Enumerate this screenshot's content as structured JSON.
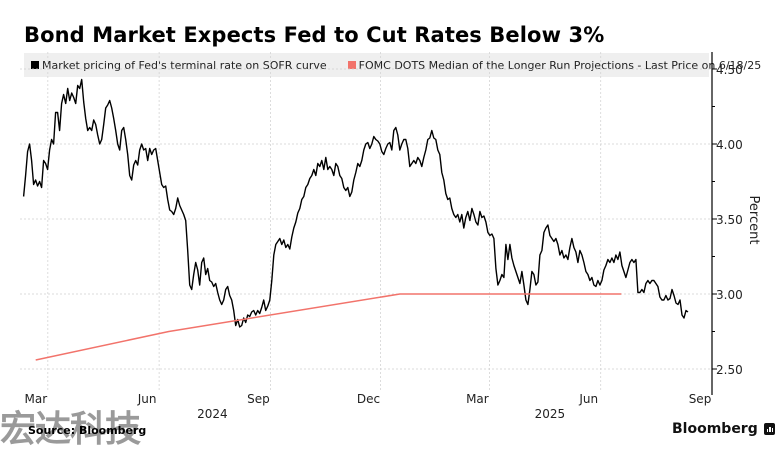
{
  "chart_data": {
    "type": "line",
    "title": "Bond Market Expects Fed to Cut Rates Below 3%",
    "xlabel": "",
    "ylabel": "Percent",
    "ylim": [
      2.4,
      4.6
    ],
    "xlim": [
      "2024-02-07",
      "2025-09-01"
    ],
    "y_ticks": [
      "4.50",
      "4.00",
      "3.50",
      "3.00",
      "2.50"
    ],
    "y_tick_values": [
      4.5,
      4.0,
      3.5,
      3.0,
      2.5
    ],
    "x_ticks": [
      {
        "label": "Mar",
        "date": "2024-03-01"
      },
      {
        "label": "Jun",
        "date": "2024-06-01"
      },
      {
        "label": "Sep",
        "date": "2024-09-01"
      },
      {
        "label": "Dec",
        "date": "2024-12-01"
      },
      {
        "label": "Mar",
        "date": "2025-03-01"
      },
      {
        "label": "Jun",
        "date": "2025-06-01"
      },
      {
        "label": "Sep",
        "date": "2025-09-01"
      }
    ],
    "x_years": [
      {
        "label": "2024",
        "date": "2024-07-15"
      },
      {
        "label": "2025",
        "date": "2025-04-20"
      }
    ],
    "grid": true,
    "legend_position": "top",
    "series": [
      {
        "name": "Market pricing of Fed's terminal rate on SOFR curve",
        "color": "#000000",
        "start_date": "2024-02-10",
        "step_days": 1.654,
        "values": [
          3.65,
          3.79,
          3.95,
          4.0,
          3.89,
          3.73,
          3.76,
          3.72,
          3.75,
          3.71,
          3.89,
          3.87,
          3.83,
          3.96,
          4.03,
          4.0,
          4.21,
          4.21,
          4.09,
          4.27,
          4.33,
          4.27,
          4.37,
          4.29,
          4.34,
          4.31,
          4.27,
          4.39,
          4.37,
          4.43,
          4.28,
          4.17,
          4.09,
          4.11,
          4.09,
          4.16,
          4.13,
          4.06,
          4.0,
          4.03,
          4.13,
          4.24,
          4.26,
          4.29,
          4.24,
          4.17,
          4.09,
          4.0,
          3.96,
          4.09,
          4.11,
          4.03,
          3.93,
          3.79,
          3.76,
          3.86,
          3.89,
          3.86,
          3.96,
          4.0,
          3.96,
          3.97,
          3.89,
          3.97,
          3.93,
          3.96,
          3.97,
          3.89,
          3.81,
          3.73,
          3.71,
          3.72,
          3.63,
          3.56,
          3.55,
          3.53,
          3.57,
          3.64,
          3.59,
          3.56,
          3.53,
          3.49,
          3.29,
          3.06,
          3.03,
          3.13,
          3.21,
          3.16,
          3.06,
          3.21,
          3.24,
          3.13,
          3.17,
          3.09,
          3.08,
          3.05,
          3.07,
          3.01,
          2.96,
          2.93,
          2.96,
          3.03,
          3.05,
          2.99,
          2.96,
          2.89,
          2.79,
          2.83,
          2.78,
          2.79,
          2.84,
          2.81,
          2.86,
          2.85,
          2.88,
          2.89,
          2.86,
          2.89,
          2.87,
          2.91,
          2.96,
          2.89,
          2.92,
          2.96,
          3.09,
          3.26,
          3.33,
          3.35,
          3.37,
          3.33,
          3.36,
          3.31,
          3.33,
          3.3,
          3.38,
          3.44,
          3.48,
          3.54,
          3.57,
          3.63,
          3.65,
          3.71,
          3.73,
          3.77,
          3.79,
          3.83,
          3.79,
          3.87,
          3.85,
          3.89,
          3.83,
          3.91,
          3.83,
          3.85,
          3.83,
          3.79,
          3.87,
          3.85,
          3.79,
          3.77,
          3.71,
          3.69,
          3.71,
          3.65,
          3.68,
          3.76,
          3.81,
          3.87,
          3.85,
          3.89,
          3.96,
          4.0,
          4.01,
          3.97,
          4.0,
          4.05,
          4.03,
          4.02,
          4.0,
          3.95,
          3.93,
          3.97,
          4.0,
          4.01,
          3.96,
          4.09,
          4.11,
          4.06,
          3.96,
          4.0,
          4.03,
          4.03,
          3.97,
          3.85,
          3.87,
          3.89,
          3.87,
          3.91,
          3.89,
          3.85,
          3.91,
          3.96,
          4.03,
          4.04,
          4.09,
          4.04,
          4.03,
          3.96,
          3.93,
          3.81,
          3.76,
          3.67,
          3.63,
          3.64,
          3.57,
          3.53,
          3.51,
          3.53,
          3.48,
          3.53,
          3.44,
          3.51,
          3.55,
          3.49,
          3.57,
          3.53,
          3.48,
          3.46,
          3.55,
          3.51,
          3.52,
          3.48,
          3.41,
          3.39,
          3.4,
          3.37,
          3.17,
          3.06,
          3.09,
          3.13,
          3.11,
          3.33,
          3.23,
          3.33,
          3.24,
          3.19,
          3.15,
          3.11,
          3.07,
          3.15,
          3.06,
          2.96,
          2.93,
          3.03,
          3.15,
          3.13,
          3.06,
          3.08,
          3.26,
          3.29,
          3.41,
          3.44,
          3.46,
          3.39,
          3.37,
          3.35,
          3.37,
          3.33,
          3.26,
          3.29,
          3.24,
          3.26,
          3.23,
          3.31,
          3.37,
          3.31,
          3.28,
          3.21,
          3.29,
          3.26,
          3.21,
          3.15,
          3.13,
          3.09,
          3.11,
          3.06,
          3.05,
          3.09,
          3.06,
          3.09,
          3.16,
          3.19,
          3.23,
          3.21,
          3.24,
          3.21,
          3.26,
          3.23,
          3.28,
          3.19,
          3.15,
          3.11,
          3.16,
          3.21,
          3.23,
          3.21,
          3.23,
          3.01,
          3.01,
          3.03,
          3.01,
          3.07,
          3.09,
          3.07,
          3.09,
          3.09,
          3.07,
          3.05,
          2.98,
          2.96,
          2.96,
          2.99,
          2.96,
          2.97,
          3.03,
          2.99,
          2.94,
          2.93,
          2.96,
          2.86,
          2.84,
          2.89,
          2.88
        ]
      },
      {
        "name": "FOMC DOTS Median of the Longer Run Projections - Last Price on 6/18/25",
        "color": "#f2736b",
        "points": [
          {
            "date": "2024-02-20",
            "value": 2.56
          },
          {
            "date": "2024-06-09",
            "value": 2.75
          },
          {
            "date": "2024-12-17",
            "value": 3.0
          },
          {
            "date": "2025-06-18",
            "value": 3.0
          }
        ]
      }
    ]
  },
  "legend": {
    "items": [
      {
        "label": "Market pricing of Fed's terminal rate on SOFR curve",
        "color": "#000000"
      },
      {
        "label": "FOMC DOTS Median of the Longer Run Projections - Last Price on 6/18/25",
        "color": "#f2736b"
      }
    ]
  },
  "footer": {
    "source": "Source: Bloomberg",
    "brand": "Bloomberg",
    "watermark": "宏达科技"
  }
}
